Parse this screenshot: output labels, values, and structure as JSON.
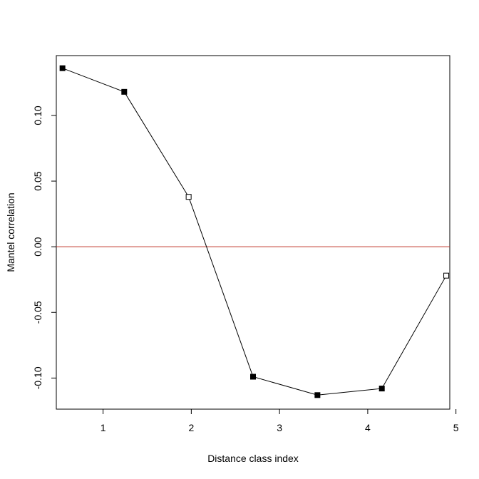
{
  "chart_data": {
    "type": "line",
    "title": "",
    "xlabel": "Distance class index",
    "ylabel": "Mantel correlation",
    "xlim": [
      0.47,
      4.93
    ],
    "ylim": [
      -0.1237,
      0.1456
    ],
    "x_ticks": [
      1,
      2,
      3,
      4,
      5
    ],
    "x_tick_labels": [
      "1",
      "2",
      "3",
      "4",
      "5"
    ],
    "y_ticks": [
      -0.1,
      -0.05,
      0.0,
      0.05,
      0.1
    ],
    "y_tick_labels": [
      "-0.10",
      "-0.05",
      "0.00",
      "0.05",
      "0.10"
    ],
    "grid": false,
    "reference_line": {
      "y": 0.0,
      "color": "#c0392b"
    },
    "series": [
      {
        "line_color": "#000000",
        "points": [
          {
            "x": 0.54,
            "y": 0.136,
            "filled": true
          },
          {
            "x": 1.24,
            "y": 0.118,
            "filled": true
          },
          {
            "x": 1.97,
            "y": 0.038,
            "filled": false
          },
          {
            "x": 2.7,
            "y": -0.099,
            "filled": true
          },
          {
            "x": 3.43,
            "y": -0.113,
            "filled": true
          },
          {
            "x": 4.16,
            "y": -0.108,
            "filled": true
          },
          {
            "x": 4.89,
            "y": -0.022,
            "filled": false
          }
        ]
      }
    ]
  }
}
